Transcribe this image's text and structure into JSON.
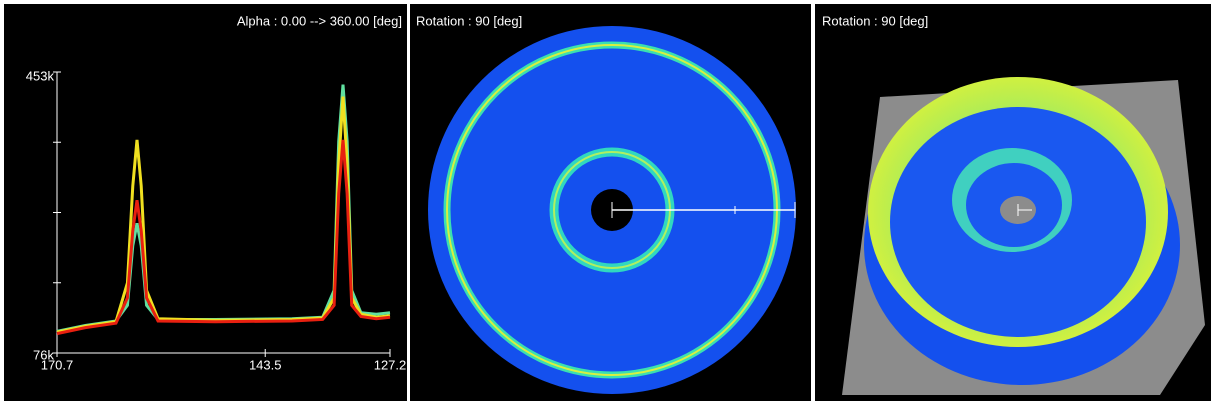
{
  "panels": [
    {
      "title": "Alpha : 0.00 --> 360.00 [deg]",
      "chart_data": {
        "type": "line",
        "x": [
          170.7,
          167,
          163,
          161.5,
          160.8,
          160.25,
          159.7,
          159,
          157.5,
          150,
          140,
          136,
          134.5,
          133.9,
          133.34,
          132.8,
          132.2,
          131,
          129,
          127.2
        ],
        "series": [
          {
            "color": "#60e0a0",
            "values": [
              105000,
              113000,
              119000,
              140000,
              220000,
              250000,
              220000,
              140000,
              121000,
              121000,
              122000,
              124000,
              160000,
              360000,
              436000,
              360000,
              160000,
              130000,
              128000,
              130000
            ]
          },
          {
            "color": "#f0e020",
            "values": [
              104000,
              112000,
              118000,
              170000,
              300000,
              362000,
              300000,
              160000,
              122000,
              120000,
              121000,
              123000,
              150000,
              330000,
              420000,
              330000,
              150000,
              128000,
              124000,
              126000
            ]
          },
          {
            "color": "#e82010",
            "values": [
              102000,
              110000,
              116000,
              150000,
              240000,
              281000,
              240000,
              150000,
              119000,
              118000,
              119000,
              121000,
              140000,
              290000,
              362000,
              290000,
              140000,
              125000,
              122000,
              124000
            ]
          }
        ],
        "xlim": [
          170.7,
          127.2
        ],
        "xticks": [
          170.7,
          143.5,
          127.2
        ],
        "ylim": [
          76000,
          453000
        ],
        "yticks": [
          {
            "value": 76000,
            "label": "76k"
          },
          {
            "value": 453000,
            "label": "453k"
          }
        ],
        "yminor": [
          170250,
          264500,
          358750
        ]
      }
    },
    {
      "title": "Rotation : 90 [deg]"
    },
    {
      "title": "Rotation : 90 [deg]"
    }
  ]
}
